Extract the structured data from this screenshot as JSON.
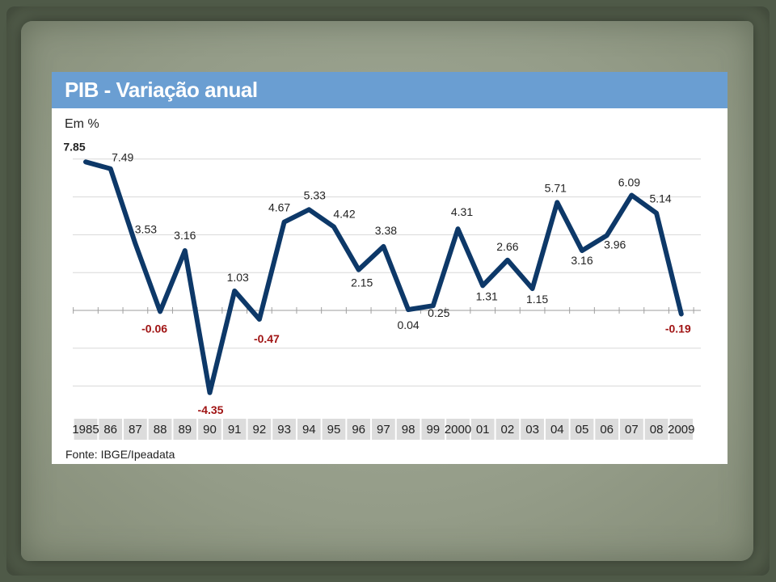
{
  "chart_data": {
    "type": "line",
    "title": "PIB - Variação anual",
    "ylabel": "Em %",
    "source": "Fonte: IBGE/Ipeadata",
    "categories": [
      "1985",
      "86",
      "87",
      "88",
      "89",
      "90",
      "91",
      "92",
      "93",
      "94",
      "95",
      "96",
      "97",
      "98",
      "99",
      "2000",
      "01",
      "02",
      "03",
      "04",
      "05",
      "06",
      "07",
      "08",
      "2009"
    ],
    "values": [
      7.85,
      7.49,
      3.53,
      -0.06,
      3.16,
      -4.35,
      1.03,
      -0.47,
      4.67,
      5.33,
      4.42,
      2.15,
      3.38,
      0.04,
      0.25,
      4.31,
      1.31,
      2.66,
      1.15,
      5.71,
      3.16,
      3.96,
      6.09,
      5.14,
      -0.19
    ],
    "labels": [
      "7.85",
      "7.49",
      "3.53",
      "-0.06",
      "3.16",
      "-4.35",
      "1.03",
      "-0.47",
      "4.67",
      "5.33",
      "4.42",
      "2.15",
      "3.38",
      "0.04",
      "0.25",
      "4.31",
      "1.31",
      "2.66",
      "1.15",
      "5.71",
      "3.16",
      "3.96",
      "6.09",
      "5.14",
      "-0.19"
    ],
    "ylim": [
      -4.35,
      7.85
    ],
    "grid": true,
    "colors": {
      "line": "#0d3868",
      "negative_label": "#a01414",
      "label": "#222222",
      "header": "#6a9ed2"
    }
  }
}
